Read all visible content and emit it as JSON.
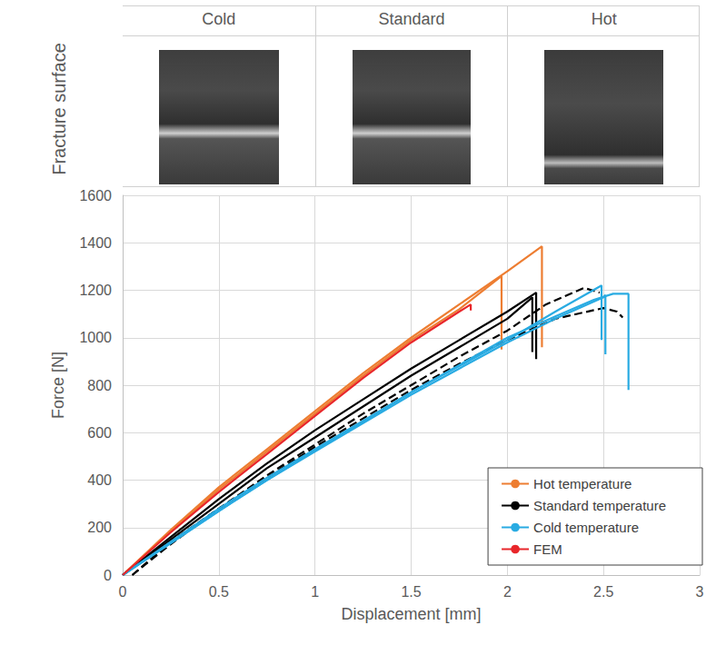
{
  "header": {
    "row_label": "Fracture surface",
    "columns": [
      "Cold",
      "Standard",
      "Hot"
    ]
  },
  "chart_data": {
    "type": "line",
    "x_label": "Displacement [mm]",
    "y_label": "Force [N]",
    "xlim": [
      0,
      3
    ],
    "xticks": [
      0,
      0.5,
      1,
      1.5,
      2,
      2.5,
      3
    ],
    "ylim": [
      0,
      1600
    ],
    "yticks": [
      0,
      200,
      400,
      600,
      800,
      1000,
      1200,
      1400,
      1600
    ],
    "grid": true,
    "legend": "bottom right",
    "series": [
      {
        "name": "Hot temperature",
        "color": "#ED7D31",
        "line_style": "solid",
        "x": [
          0,
          0.25,
          0.5,
          0.75,
          1.0,
          1.25,
          1.5,
          1.75,
          2.0,
          2.18,
          2.18
        ],
        "values": [
          0,
          190,
          370,
          530,
          690,
          850,
          1000,
          1140,
          1280,
          1385,
          960
        ]
      },
      {
        "name": "Hot temperature",
        "color": "#ED7D31",
        "line_style": "solid",
        "x": [
          0,
          0.25,
          0.5,
          0.75,
          1.0,
          1.25,
          1.5,
          1.75,
          1.97,
          1.97
        ],
        "values": [
          0,
          185,
          360,
          520,
          680,
          840,
          990,
          1120,
          1260,
          950
        ]
      },
      {
        "name": "Standard temperature",
        "color": "#000000",
        "line_style": "solid",
        "x": [
          0,
          0.25,
          0.5,
          0.75,
          1.0,
          1.25,
          1.5,
          1.75,
          2.0,
          2.15,
          2.15
        ],
        "values": [
          0,
          160,
          320,
          470,
          610,
          740,
          870,
          990,
          1110,
          1190,
          910
        ]
      },
      {
        "name": "Standard temperature",
        "color": "#000000",
        "line_style": "solid",
        "x": [
          0,
          0.25,
          0.5,
          0.75,
          1.0,
          1.25,
          1.5,
          1.75,
          2.0,
          2.13,
          2.13
        ],
        "values": [
          0,
          150,
          300,
          450,
          580,
          710,
          840,
          960,
          1080,
          1170,
          940
        ]
      },
      {
        "name": "Standard temperature",
        "color": "#000000",
        "line_style": "dashed",
        "x": [
          0.05,
          0.25,
          0.5,
          0.75,
          1.0,
          1.25,
          1.5,
          1.75,
          2.0,
          2.2,
          2.4,
          2.48
        ],
        "values": [
          0,
          130,
          280,
          420,
          550,
          680,
          800,
          920,
          1030,
          1140,
          1210,
          1190
        ]
      },
      {
        "name": "Standard temperature",
        "color": "#000000",
        "line_style": "dashed",
        "x": [
          0.05,
          0.25,
          0.5,
          0.75,
          1.0,
          1.25,
          1.5,
          1.75,
          2.0,
          2.25,
          2.5,
          2.57,
          2.6
        ],
        "values": [
          0,
          140,
          280,
          410,
          540,
          660,
          780,
          890,
          990,
          1080,
          1125,
          1110,
          1085
        ]
      },
      {
        "name": "Cold temperature",
        "color": "#29ABE2",
        "line_style": "solid",
        "x": [
          0,
          0.25,
          0.5,
          0.75,
          1.0,
          1.25,
          1.5,
          1.75,
          2.0,
          2.25,
          2.49,
          2.49
        ],
        "values": [
          0,
          140,
          280,
          410,
          530,
          650,
          770,
          880,
          990,
          1110,
          1220,
          990
        ]
      },
      {
        "name": "Cold temperature",
        "color": "#29ABE2",
        "line_style": "solid",
        "x": [
          0,
          0.25,
          0.5,
          0.75,
          1.0,
          1.25,
          1.5,
          1.75,
          2.0,
          2.25,
          2.5,
          2.51,
          2.51
        ],
        "values": [
          0,
          135,
          270,
          400,
          520,
          640,
          760,
          870,
          980,
          1080,
          1170,
          1180,
          930
        ]
      },
      {
        "name": "Cold temperature",
        "color": "#29ABE2",
        "line_style": "solid",
        "x": [
          0,
          0.25,
          0.5,
          0.75,
          1.0,
          1.5,
          2.0,
          2.25,
          2.45,
          2.55,
          2.63,
          2.63
        ],
        "values": [
          0,
          135,
          270,
          400,
          525,
          770,
          1000,
          1090,
          1160,
          1185,
          1185,
          780
        ]
      },
      {
        "name": "FEM",
        "color": "#E8262A",
        "line_style": "solid",
        "x": [
          0,
          0.25,
          0.5,
          0.75,
          1.0,
          1.25,
          1.5,
          1.75,
          1.81,
          1.81
        ],
        "values": [
          0,
          180,
          350,
          510,
          670,
          830,
          980,
          1110,
          1140,
          1115
        ]
      }
    ]
  }
}
